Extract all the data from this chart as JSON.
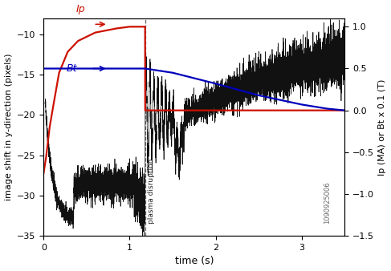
{
  "title": "",
  "xlabel": "time (s)",
  "ylabel_left": "image shift in y-direction (pixels)",
  "ylabel_right": "Ip (MA) or Bt x 0.1 (T)",
  "xlim": [
    0,
    3.5
  ],
  "ylim_left": [
    -35,
    -8
  ],
  "ylim_right": [
    -1.5,
    1.1
  ],
  "disruption_time": 1.18,
  "annotation_text": "plasma disruption",
  "shot_label": "1090925006",
  "Ip_label": "Ip",
  "Bt_label": "Bt",
  "Ip_color": "#cc1100",
  "Bt_color": "#0000bb",
  "signal_color": "#111111",
  "background_color": "#ffffff",
  "Ip_points_t": [
    0,
    0.03,
    0.07,
    0.12,
    0.18,
    0.28,
    0.4,
    0.6,
    0.85,
    1.0,
    1.18,
    1.181,
    3.5
  ],
  "Ip_points_v": [
    -0.75,
    -0.55,
    -0.2,
    0.1,
    0.45,
    0.7,
    0.83,
    0.93,
    0.98,
    1.0,
    1.0,
    0.0,
    0.0
  ],
  "Bt_points_t": [
    0,
    1.18,
    1.5,
    2.0,
    2.5,
    3.0,
    3.3,
    3.5
  ],
  "Bt_points_v": [
    0.5,
    0.5,
    0.45,
    0.32,
    0.18,
    0.07,
    0.02,
    0.0
  ],
  "yticks_left": [
    -10,
    -15,
    -20,
    -25,
    -30,
    -35
  ],
  "yticks_right": [
    -1.5,
    -1.0,
    -0.5,
    0.0,
    0.5,
    1.0
  ],
  "xticks": [
    0,
    1,
    2,
    3
  ]
}
